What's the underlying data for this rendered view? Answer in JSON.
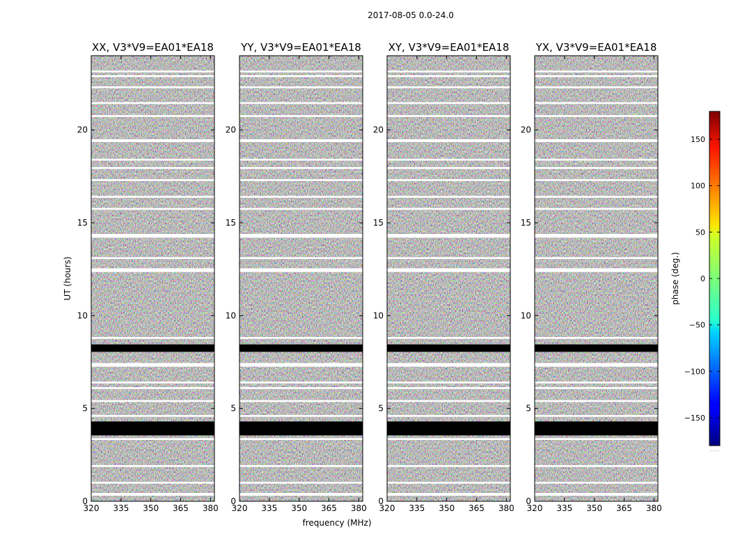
{
  "figure": {
    "suptitle": "2017-08-05 0.0-24.0"
  },
  "chart_data": {
    "type": "heatmap",
    "shared_xlabel": "frequency (MHz)",
    "shared_ylabel": "UT (hours)",
    "xlim": [
      320,
      382
    ],
    "ylim": [
      0,
      24
    ],
    "xticks": [
      320,
      335,
      350,
      365,
      380
    ],
    "yticks": [
      0,
      5,
      10,
      15,
      20
    ],
    "panels": [
      {
        "title": "XX, V3*V9=EA01*EA18"
      },
      {
        "title": "YY, V3*V9=EA01*EA18"
      },
      {
        "title": "XY, V3*V9=EA01*EA18"
      },
      {
        "title": "YX, V3*V9=EA01*EA18"
      }
    ],
    "colorbar": {
      "label": "phase (deg.)",
      "range": [
        -180,
        180
      ],
      "ticks": [
        -150,
        -100,
        -50,
        0,
        50,
        100,
        150
      ],
      "colormap": "jet",
      "extra_label": "......"
    },
    "flagged_bands_hours": [
      [
        0.3,
        0.45
      ],
      [
        0.95,
        1.05
      ],
      [
        1.85,
        1.95
      ],
      [
        3.3,
        3.4
      ],
      [
        3.55,
        4.3
      ],
      [
        4.55,
        4.65
      ],
      [
        5.35,
        5.45
      ],
      [
        6.05,
        6.15
      ],
      [
        6.35,
        6.45
      ],
      [
        7.25,
        7.45
      ],
      [
        8.05,
        8.45
      ],
      [
        8.75,
        8.85
      ],
      [
        12.35,
        12.55
      ],
      [
        13.05,
        13.15
      ],
      [
        14.2,
        14.4
      ],
      [
        15.7,
        15.8
      ],
      [
        16.35,
        16.45
      ],
      [
        17.25,
        17.35
      ],
      [
        17.9,
        18.0
      ],
      [
        18.35,
        18.45
      ],
      [
        19.35,
        19.5
      ],
      [
        20.7,
        20.8
      ],
      [
        21.4,
        21.5
      ],
      [
        22.25,
        22.35
      ],
      [
        22.85,
        22.95
      ],
      [
        23.1,
        23.2
      ]
    ]
  }
}
